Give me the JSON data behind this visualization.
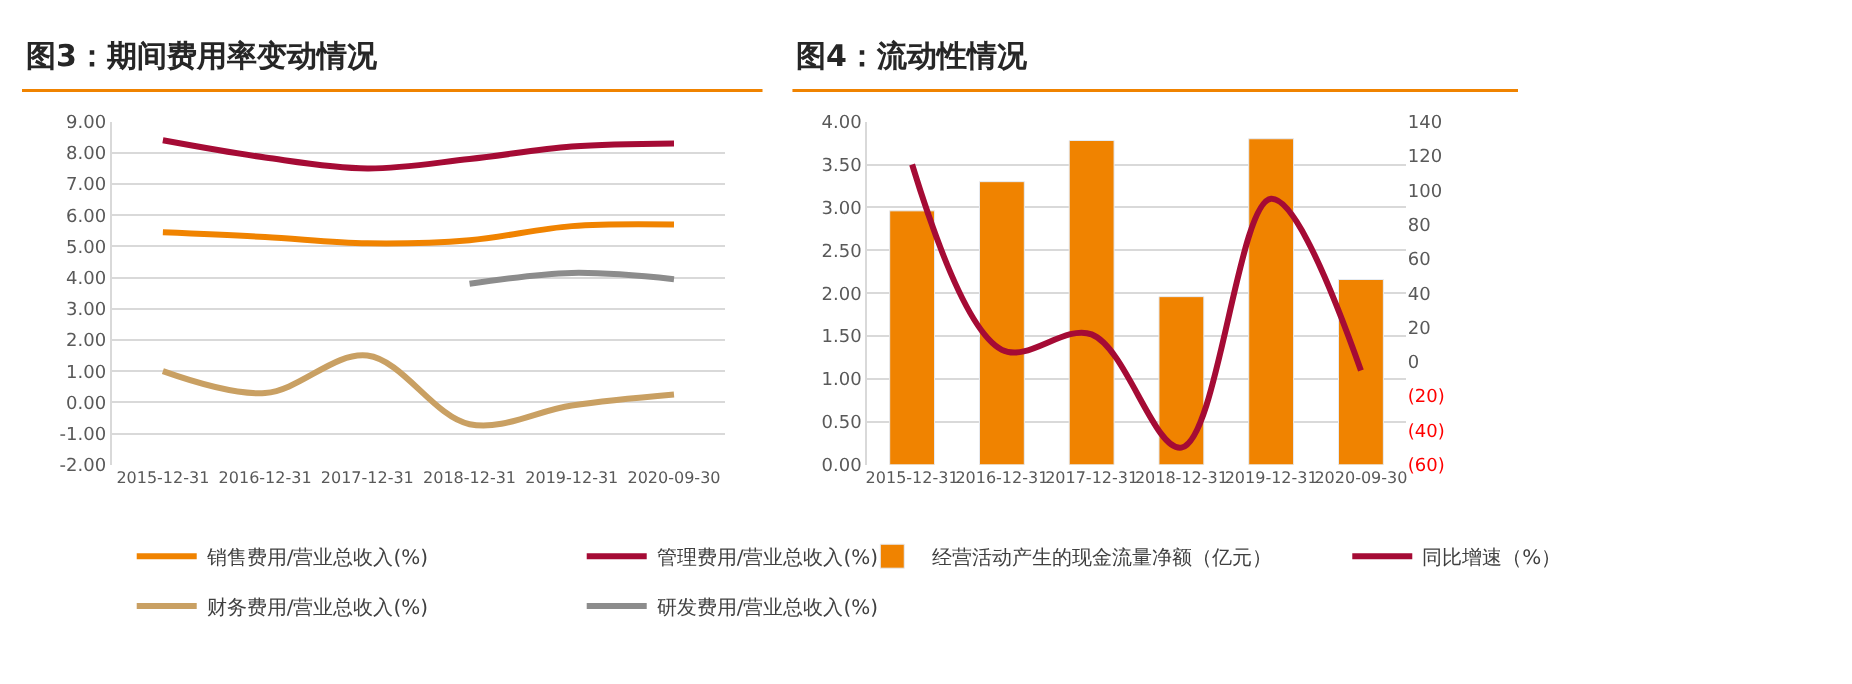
{
  "chart_data": [
    {
      "type": "line",
      "title": "图3：期间费用率变动情况",
      "categories": [
        "2015-12-31",
        "2016-12-31",
        "2017-12-31",
        "2018-12-31",
        "2019-12-31",
        "2020-09-30"
      ],
      "ylim": [
        -2,
        9
      ],
      "yticks": [
        {
          "value": -2,
          "label": "-2.00"
        },
        {
          "value": -1,
          "label": "-1.00"
        },
        {
          "value": 0,
          "label": "0.00"
        },
        {
          "value": 1,
          "label": "1.00"
        },
        {
          "value": 2,
          "label": "2.00"
        },
        {
          "value": 3,
          "label": "3.00"
        },
        {
          "value": 4,
          "label": "4.00"
        },
        {
          "value": 5,
          "label": "5.00"
        },
        {
          "value": 6,
          "label": "6.00"
        },
        {
          "value": 7,
          "label": "7.00"
        },
        {
          "value": 8,
          "label": "8.00"
        },
        {
          "value": 9,
          "label": "9.00"
        }
      ],
      "grid": "y",
      "legend": "bottom",
      "marker": "none",
      "line_style": "solid",
      "series": [
        {
          "name": "销售费用/营业总收入(%)",
          "color": "#f08300",
          "values": [
            5.45,
            5.3,
            5.1,
            5.2,
            5.65,
            5.7
          ]
        },
        {
          "name": "管理费用/营业总收入(%)",
          "color": "#a50b35",
          "values": [
            8.4,
            7.85,
            7.5,
            7.8,
            8.2,
            8.3
          ]
        },
        {
          "name": "财务费用/营业总收入(%)",
          "color": "#c9a063",
          "values": [
            1.0,
            0.3,
            1.5,
            -0.7,
            -0.1,
            0.25
          ]
        },
        {
          "name": "研发费用/营业总收入(%)",
          "color": "#8c8c8c",
          "values": [
            null,
            null,
            null,
            3.8,
            4.15,
            3.95
          ]
        }
      ]
    },
    {
      "type": "bar",
      "title": "图4：流动性情况",
      "categories": [
        "2015-12-31",
        "2016-12-31",
        "2017-12-31",
        "2018-12-31",
        "2019-12-31",
        "2020-09-30"
      ],
      "ylim": [
        0,
        4
      ],
      "yticks": [
        {
          "value": 0,
          "label": "0.00"
        },
        {
          "value": 0.5,
          "label": "0.50"
        },
        {
          "value": 1,
          "label": "1.00"
        },
        {
          "value": 1.5,
          "label": "1.50"
        },
        {
          "value": 2,
          "label": "2.00"
        },
        {
          "value": 2.5,
          "label": "2.50"
        },
        {
          "value": 3,
          "label": "3.00"
        },
        {
          "value": 3.5,
          "label": "3.50"
        },
        {
          "value": 4,
          "label": "4.00"
        }
      ],
      "y2lim": [
        -60,
        140
      ],
      "y2ticks": [
        {
          "value": -60,
          "label": "(60)"
        },
        {
          "value": -40,
          "label": "(40)"
        },
        {
          "value": -20,
          "label": "(20)"
        },
        0,
        20,
        40,
        60,
        80,
        100,
        120,
        140
      ],
      "grid": "y",
      "legend": "bottom",
      "marker": "none",
      "series": [
        {
          "name": "经营活动产生的现金流量净额（亿元）",
          "color": "#f08300",
          "values": [
            2.96,
            3.3,
            3.78,
            1.96,
            3.8,
            2.16
          ]
        },
        {
          "name": "同比增速（%）",
          "type": "line",
          "axis": "y2",
          "color": "#a50b35",
          "values": [
            115,
            7,
            16,
            -50,
            95,
            -5
          ]
        }
      ]
    }
  ]
}
